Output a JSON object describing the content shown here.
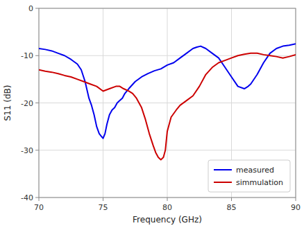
{
  "chart_data": {
    "type": "line",
    "xlabel": "Frequency (GHz)",
    "ylabel": "S11 (dB)",
    "xlim": [
      70,
      90
    ],
    "ylim": [
      -40,
      0
    ],
    "xticks": [
      70,
      75,
      80,
      85,
      90
    ],
    "yticks": [
      -40,
      -30,
      -20,
      -10,
      0
    ],
    "grid": true,
    "legend": "lower right",
    "series": [
      {
        "name": "measured",
        "color": "#0000ee",
        "x": [
          70.0,
          70.5,
          71.0,
          71.5,
          72.0,
          72.5,
          73.0,
          73.3,
          73.6,
          73.9,
          74.1,
          74.3,
          74.5,
          74.7,
          74.85,
          75.0,
          75.15,
          75.3,
          75.5,
          75.7,
          75.9,
          76.1,
          76.3,
          76.5,
          76.7,
          77.0,
          77.5,
          78.0,
          78.5,
          79.0,
          79.5,
          80.0,
          80.5,
          81.0,
          81.5,
          82.0,
          82.3,
          82.6,
          83.0,
          83.5,
          84.0,
          84.5,
          85.0,
          85.5,
          86.0,
          86.3,
          86.5,
          87.0,
          87.5,
          88.0,
          88.5,
          89.0,
          89.5,
          90.0
        ],
        "values": [
          -8.5,
          -8.7,
          -9.0,
          -9.5,
          -10.0,
          -10.8,
          -11.8,
          -13.0,
          -15.5,
          -19.0,
          -20.5,
          -22.5,
          -25.0,
          -26.5,
          -27.0,
          -27.5,
          -26.5,
          -24.5,
          -22.5,
          -21.5,
          -21.0,
          -20.0,
          -19.5,
          -19.0,
          -18.0,
          -17.0,
          -15.5,
          -14.5,
          -13.8,
          -13.2,
          -12.8,
          -12.0,
          -11.5,
          -10.5,
          -9.5,
          -8.5,
          -8.2,
          -8.0,
          -8.5,
          -9.5,
          -10.5,
          -12.5,
          -14.5,
          -16.5,
          -17.0,
          -16.5,
          -16.0,
          -14.0,
          -11.5,
          -9.5,
          -8.5,
          -8.0,
          -7.8,
          -7.5
        ]
      },
      {
        "name": "simmulation",
        "color": "#cc0000",
        "x": [
          70.0,
          70.5,
          71.0,
          71.5,
          72.0,
          72.5,
          73.0,
          73.5,
          74.0,
          74.5,
          75.0,
          75.5,
          76.0,
          76.3,
          76.6,
          77.0,
          77.3,
          77.6,
          78.0,
          78.3,
          78.6,
          78.9,
          79.1,
          79.3,
          79.5,
          79.7,
          79.85,
          80.0,
          80.3,
          80.7,
          81.0,
          81.5,
          82.0,
          82.5,
          83.0,
          83.5,
          84.0,
          84.5,
          85.0,
          85.5,
          86.0,
          86.5,
          87.0,
          87.5,
          88.0,
          88.5,
          89.0,
          89.5,
          90.0
        ],
        "values": [
          -13.0,
          -13.3,
          -13.5,
          -13.8,
          -14.2,
          -14.5,
          -15.0,
          -15.5,
          -16.0,
          -16.5,
          -17.5,
          -17.0,
          -16.5,
          -16.5,
          -17.0,
          -17.5,
          -18.0,
          -19.0,
          -21.0,
          -23.5,
          -26.5,
          -29.0,
          -30.5,
          -31.5,
          -32.0,
          -31.5,
          -30.0,
          -26.0,
          -23.0,
          -21.5,
          -20.5,
          -19.5,
          -18.5,
          -16.5,
          -14.0,
          -12.5,
          -11.5,
          -11.0,
          -10.5,
          -10.0,
          -9.7,
          -9.5,
          -9.5,
          -9.8,
          -10.0,
          -10.2,
          -10.5,
          -10.2,
          -9.8
        ]
      }
    ]
  }
}
